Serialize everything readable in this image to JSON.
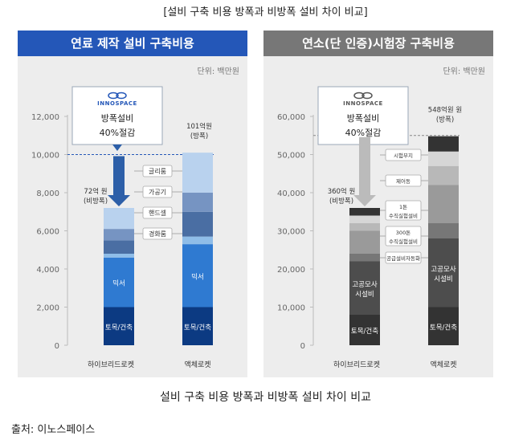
{
  "top_caption": "[설비 구축 비용 방폭과 비방폭 설비 차이 비교]",
  "bottom_caption": "설비 구축 비용 방폭과 비방폭 설비 차이 비교",
  "source": "출처: 이노스페이스",
  "colors": {
    "left_header": "#2457b8",
    "right_header": "#777777",
    "left_bar": [
      "#0c3a82",
      "#2f7ad1",
      "#8fbde8",
      "#4a6ea3",
      "#7694c2",
      "#b9d2ee"
    ],
    "right_bar": [
      "#333333",
      "#4d4d4d",
      "#777777",
      "#9a9a9a",
      "#b8b8b8",
      "#d6d6d6"
    ]
  },
  "chart_data": [
    {
      "type": "bar",
      "stacked": true,
      "title": "연료 제작 설비 구축비용",
      "unit_label": "단위: 백만원",
      "ylim": [
        0,
        12000
      ],
      "yticks": [
        "0",
        "2,000",
        "4,000",
        "6,000",
        "8,000",
        "10,000",
        "12,000"
      ],
      "categories": [
        "하이브리드로켓",
        "액체로켓"
      ],
      "totals": [
        7200,
        10100
      ],
      "total_labels": [
        [
          "72억 원",
          "(비방폭)"
        ],
        [
          "101억원",
          "(방폭)"
        ]
      ],
      "series": [
        {
          "name": "토목/건축",
          "values": [
            2000,
            2000
          ]
        },
        {
          "name": "믹서",
          "values": [
            2600,
            3300
          ]
        },
        {
          "name": "",
          "values": [
            200,
            400
          ]
        },
        {
          "name": "경화룸",
          "values": [
            700,
            1300
          ]
        },
        {
          "name": "핸드셀",
          "values": [
            600,
            1000
          ]
        },
        {
          "name": "",
          "values": [
            1100,
            2100
          ]
        }
      ],
      "callouts": [
        "글리룸",
        "가공기",
        "핸드셀",
        "경화룸"
      ],
      "inner_labels": [
        "믹서",
        "토목/건축"
      ],
      "reference_line": 10000,
      "badge": {
        "logo": "INNOSPACE",
        "line1": "방폭설비",
        "line2": "40%절감"
      }
    },
    {
      "type": "bar",
      "stacked": true,
      "title": "연소(단 인증)시험장 구축비용",
      "unit_label": "단위: 백만원",
      "ylim": [
        0,
        60000
      ],
      "yticks": [
        "0",
        "10,000",
        "20,000",
        "30,000",
        "40,000",
        "50,000",
        "60,000"
      ],
      "categories": [
        "하이브리드로켓",
        "액체로켓"
      ],
      "totals": [
        36000,
        54800
      ],
      "total_labels": [
        [
          "360억 원",
          "(비방폭)"
        ],
        [
          "548억원 원",
          "(방폭)"
        ]
      ],
      "series": [
        {
          "name": "토목/건축",
          "values": [
            8000,
            10000
          ]
        },
        {
          "name": "고공모사 시설비",
          "values": [
            14000,
            18000
          ]
        },
        {
          "name": "공급설비자동화",
          "values": [
            2000,
            4000
          ]
        },
        {
          "name": "300톤 수직실험설비",
          "values": [
            6000,
            10000
          ]
        },
        {
          "name": "1톤 수직실험설비",
          "values": [
            2000,
            5000
          ]
        },
        {
          "name": "제어동",
          "values": [
            2000,
            3800
          ]
        },
        {
          "name": "시험부지",
          "values": [
            2000,
            4000
          ]
        }
      ],
      "callouts": [
        "시험부지",
        "제어동",
        "1톤 수직실험설비",
        "300톤 수직실험설비",
        "공급설비자동화"
      ],
      "inner_labels": [
        "고공모사 시설비",
        "토목/건축"
      ],
      "reference_line": 55000,
      "badge": {
        "logo": "INNOSPACE",
        "line1": "방폭설비",
        "line2": "40%절감"
      }
    }
  ]
}
